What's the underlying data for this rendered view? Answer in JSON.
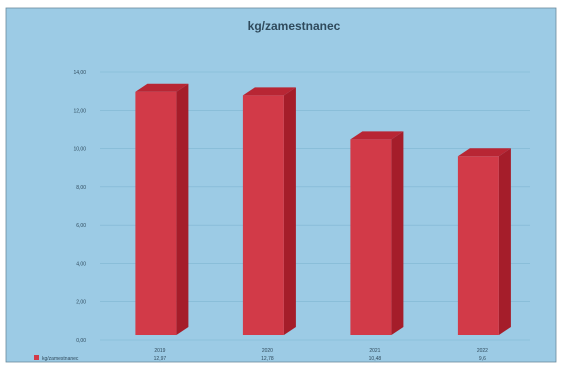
{
  "chart_data": {
    "type": "bar",
    "title": "kg/zamestnanec",
    "categories": [
      "2019",
      "2020",
      "2021",
      "2022"
    ],
    "series": [
      {
        "name": "kg/zamestnanec",
        "values": [
          12.97,
          12.78,
          10.48,
          9.6
        ],
        "value_labels": [
          "12,97",
          "12,78",
          "10,48",
          "9,6"
        ]
      }
    ],
    "y_ticks": [
      "0,00",
      "2,00",
      "4,00",
      "6,00",
      "8,00",
      "10,00",
      "12,00",
      "14,00"
    ],
    "ylim": [
      0,
      14
    ],
    "grid": true,
    "legend_position": "bottom-left",
    "colors": {
      "background": "#9ccbe5",
      "bar_front": "#d23a48",
      "bar_side": "#a51d2a",
      "bar_top": "#b82634",
      "grid": "#7fb6d2",
      "text": "#2f4a5c",
      "frame": "#6b8a9c"
    }
  }
}
